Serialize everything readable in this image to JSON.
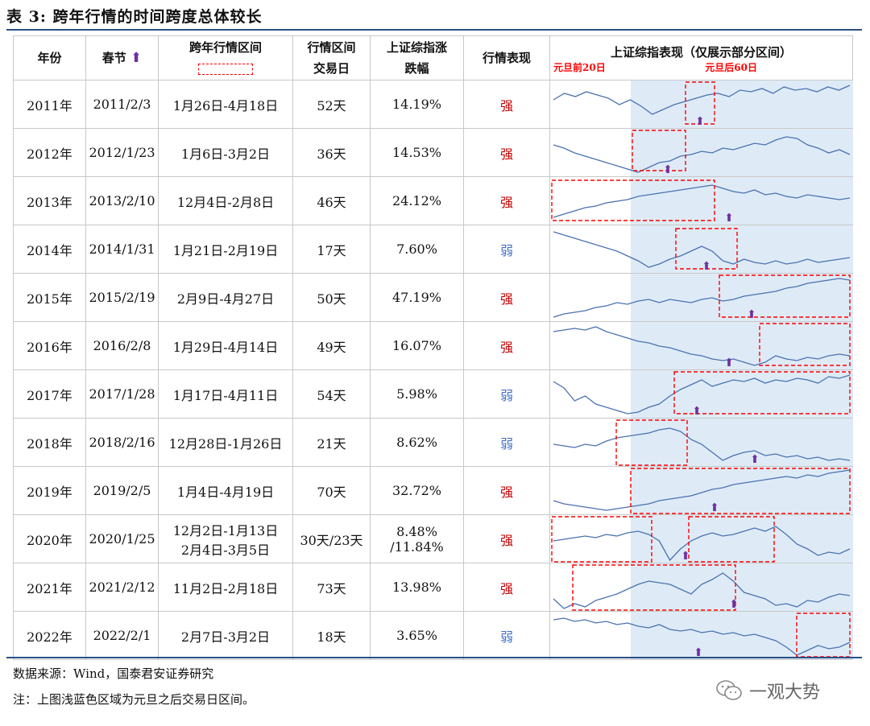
{
  "title": "表 3:  跨年行情的时间跨度总体较长",
  "headers": {
    "year": "年份",
    "spring": "春节",
    "interval": "跨年行情区间",
    "days_l1": "行情区间",
    "days_l2": "交易日",
    "gain_l1": "上证综指涨",
    "gain_l2": "跌幅",
    "perf": "行情表现",
    "chart": "上证综指表现（仅展示部分区间）",
    "chart_left": "元旦前20日",
    "chart_right": "元旦后60日"
  },
  "rows": [
    {
      "year": "2011年",
      "spring": "2011/2/3",
      "interval": "1月26日-4月18日",
      "days": "52天",
      "gain": "14.19%",
      "perf": "强"
    },
    {
      "year": "2012年",
      "spring": "2012/1/23",
      "interval": "1月6日-3月2日",
      "days": "36天",
      "gain": "14.53%",
      "perf": "强"
    },
    {
      "year": "2013年",
      "spring": "2013/2/10",
      "interval": "12月4日-2月8日",
      "days": "46天",
      "gain": "24.12%",
      "perf": "强"
    },
    {
      "year": "2014年",
      "spring": "2014/1/31",
      "interval": "1月21日-2月19日",
      "days": "17天",
      "gain": "7.60%",
      "perf": "弱"
    },
    {
      "year": "2015年",
      "spring": "2015/2/19",
      "interval": "2月9日-4月27日",
      "days": "50天",
      "gain": "47.19%",
      "perf": "强"
    },
    {
      "year": "2016年",
      "spring": "2016/2/8",
      "interval": "1月29日-4月14日",
      "days": "49天",
      "gain": "16.07%",
      "perf": "强"
    },
    {
      "year": "2017年",
      "spring": "2017/1/28",
      "interval": "1月17日-4月11日",
      "days": "54天",
      "gain": "5.98%",
      "perf": "弱"
    },
    {
      "year": "2018年",
      "spring": "2018/2/16",
      "interval": "12月28日-1月26日",
      "days": "21天",
      "gain": "8.62%",
      "perf": "弱"
    },
    {
      "year": "2019年",
      "spring": "2019/2/5",
      "interval": "1月4日-4月19日",
      "days": "70天",
      "gain": "32.72%",
      "perf": "强"
    },
    {
      "year": "2020年",
      "spring": "2020/1/25",
      "interval": "12月2日-1月13日",
      "interval2": "2月4日-3月5日",
      "days": "30天/23天",
      "gain": "8.48%",
      "gain2": "/11.84%",
      "perf": "强"
    },
    {
      "year": "2021年",
      "spring": "2021/2/12",
      "interval": "11月2日-2月18日",
      "days": "73天",
      "gain": "13.98%",
      "perf": "强"
    },
    {
      "year": "2022年",
      "spring": "2022/2/1",
      "interval": "2月7日-3月2日",
      "days": "18天",
      "gain": "3.65%",
      "perf": "弱"
    }
  ],
  "notes": {
    "source": "数据来源：Wind，国泰君安证券研究",
    "note": "注：上图浅蓝色区域为元旦之后交易日区间。"
  },
  "watermark": "一观大势",
  "colors": {
    "strong": "#c00000",
    "weak": "#4472c4",
    "line": "#4a72b0",
    "shade": "#deebf7",
    "box": "#ff0000",
    "arrow": "#7030a0",
    "rule": "#2b4f86"
  }
}
